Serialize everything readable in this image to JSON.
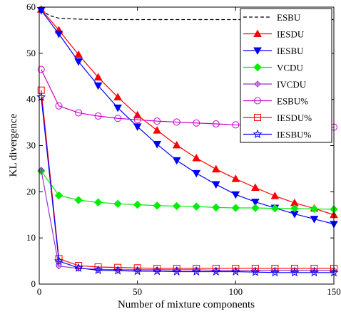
{
  "chart_data": {
    "type": "line",
    "title": "",
    "xlabel": "Number of mixture components",
    "ylabel": "KL divergence",
    "xlim": [
      0,
      150
    ],
    "ylim": [
      0,
      60
    ],
    "xticks": [
      "0",
      "50",
      "100",
      "150"
    ],
    "yticks": [
      "0",
      "10",
      "20",
      "30",
      "40",
      "50",
      "60"
    ],
    "grid": false,
    "legend_position": "top-right",
    "series": [
      {
        "name": "ESBU",
        "color": "#000000",
        "dash": "dashed",
        "marker": "none",
        "x": [
          1,
          5,
          10,
          20,
          30,
          40,
          50,
          60,
          70,
          80,
          90,
          100,
          110,
          120,
          130,
          140,
          150
        ],
        "y": [
          59.5,
          58.2,
          57.6,
          57.4,
          57.3,
          57.3,
          57.3,
          57.3,
          57.3,
          57.3,
          57.3,
          57.3,
          57.3,
          57.3,
          57.3,
          57.3,
          57.3
        ]
      },
      {
        "name": "IESDU",
        "color": "#ff0000",
        "dash": "solid",
        "marker": "triangle-up",
        "x": [
          1,
          10,
          20,
          30,
          40,
          50,
          60,
          70,
          80,
          90,
          100,
          110,
          120,
          130,
          140,
          150
        ],
        "y": [
          59.5,
          55.0,
          49.7,
          44.8,
          40.5,
          36.6,
          33.3,
          30.1,
          27.3,
          24.9,
          22.8,
          20.9,
          19.1,
          17.6,
          16.4,
          15.0
        ]
      },
      {
        "name": "IESBU",
        "color": "#0000ff",
        "dash": "solid",
        "marker": "triangle-down",
        "x": [
          1,
          10,
          20,
          30,
          40,
          50,
          60,
          70,
          80,
          90,
          100,
          110,
          120,
          130,
          140,
          150
        ],
        "y": [
          59.3,
          54.2,
          48.2,
          43.0,
          38.2,
          34.1,
          30.3,
          26.8,
          24.0,
          21.6,
          19.4,
          17.8,
          16.5,
          15.2,
          14.1,
          13.0
        ]
      },
      {
        "name": "VCDU",
        "color": "#00ee00",
        "dash": "solid",
        "marker": "diamond",
        "x": [
          1,
          10,
          20,
          30,
          40,
          50,
          60,
          70,
          80,
          90,
          100,
          110,
          120,
          130,
          140,
          150
        ],
        "y": [
          24.5,
          19.2,
          18.2,
          17.7,
          17.4,
          17.2,
          17.0,
          16.9,
          16.8,
          16.6,
          16.5,
          16.5,
          16.4,
          16.4,
          16.3,
          16.2
        ]
      },
      {
        "name": "IVCDU",
        "color": "#9932cc",
        "dash": "solid",
        "marker": "plus-diamond",
        "x": [
          1,
          10,
          20,
          30,
          40,
          50,
          60,
          70,
          80,
          90,
          100,
          110,
          120,
          130,
          140,
          150
        ],
        "y": [
          24.7,
          3.9,
          3.4,
          3.2,
          3.1,
          3.1,
          3.1,
          3.1,
          3.1,
          3.0,
          3.0,
          3.0,
          3.0,
          3.0,
          3.0,
          3.0
        ]
      },
      {
        "name": "ESBU%",
        "color": "#cc00cc",
        "dash": "solid",
        "marker": "circle",
        "x": [
          1,
          10,
          20,
          30,
          40,
          50,
          60,
          70,
          80,
          90,
          100,
          110,
          120,
          130,
          140,
          150
        ],
        "y": [
          46.5,
          38.6,
          37.1,
          36.4,
          35.9,
          35.6,
          35.3,
          35.1,
          34.9,
          34.7,
          34.5,
          34.4,
          34.3,
          34.2,
          34.1,
          34.0
        ]
      },
      {
        "name": "IESDU%",
        "color": "#ff0000",
        "dash": "solid",
        "marker": "square",
        "x": [
          1,
          10,
          20,
          30,
          40,
          50,
          60,
          70,
          80,
          90,
          100,
          110,
          120,
          130,
          140,
          150
        ],
        "y": [
          42.0,
          5.5,
          4.0,
          3.7,
          3.6,
          3.5,
          3.4,
          3.4,
          3.4,
          3.4,
          3.4,
          3.4,
          3.4,
          3.4,
          3.4,
          3.4
        ]
      },
      {
        "name": "IESBU%",
        "color": "#0000ff",
        "dash": "solid",
        "marker": "star",
        "x": [
          1,
          10,
          20,
          30,
          40,
          50,
          60,
          70,
          80,
          90,
          100,
          110,
          120,
          130,
          140,
          150
        ],
        "y": [
          40.5,
          5.0,
          3.5,
          3.0,
          2.9,
          2.8,
          2.8,
          2.7,
          2.7,
          2.7,
          2.7,
          2.6,
          2.5,
          2.5,
          2.5,
          2.5
        ]
      }
    ]
  }
}
